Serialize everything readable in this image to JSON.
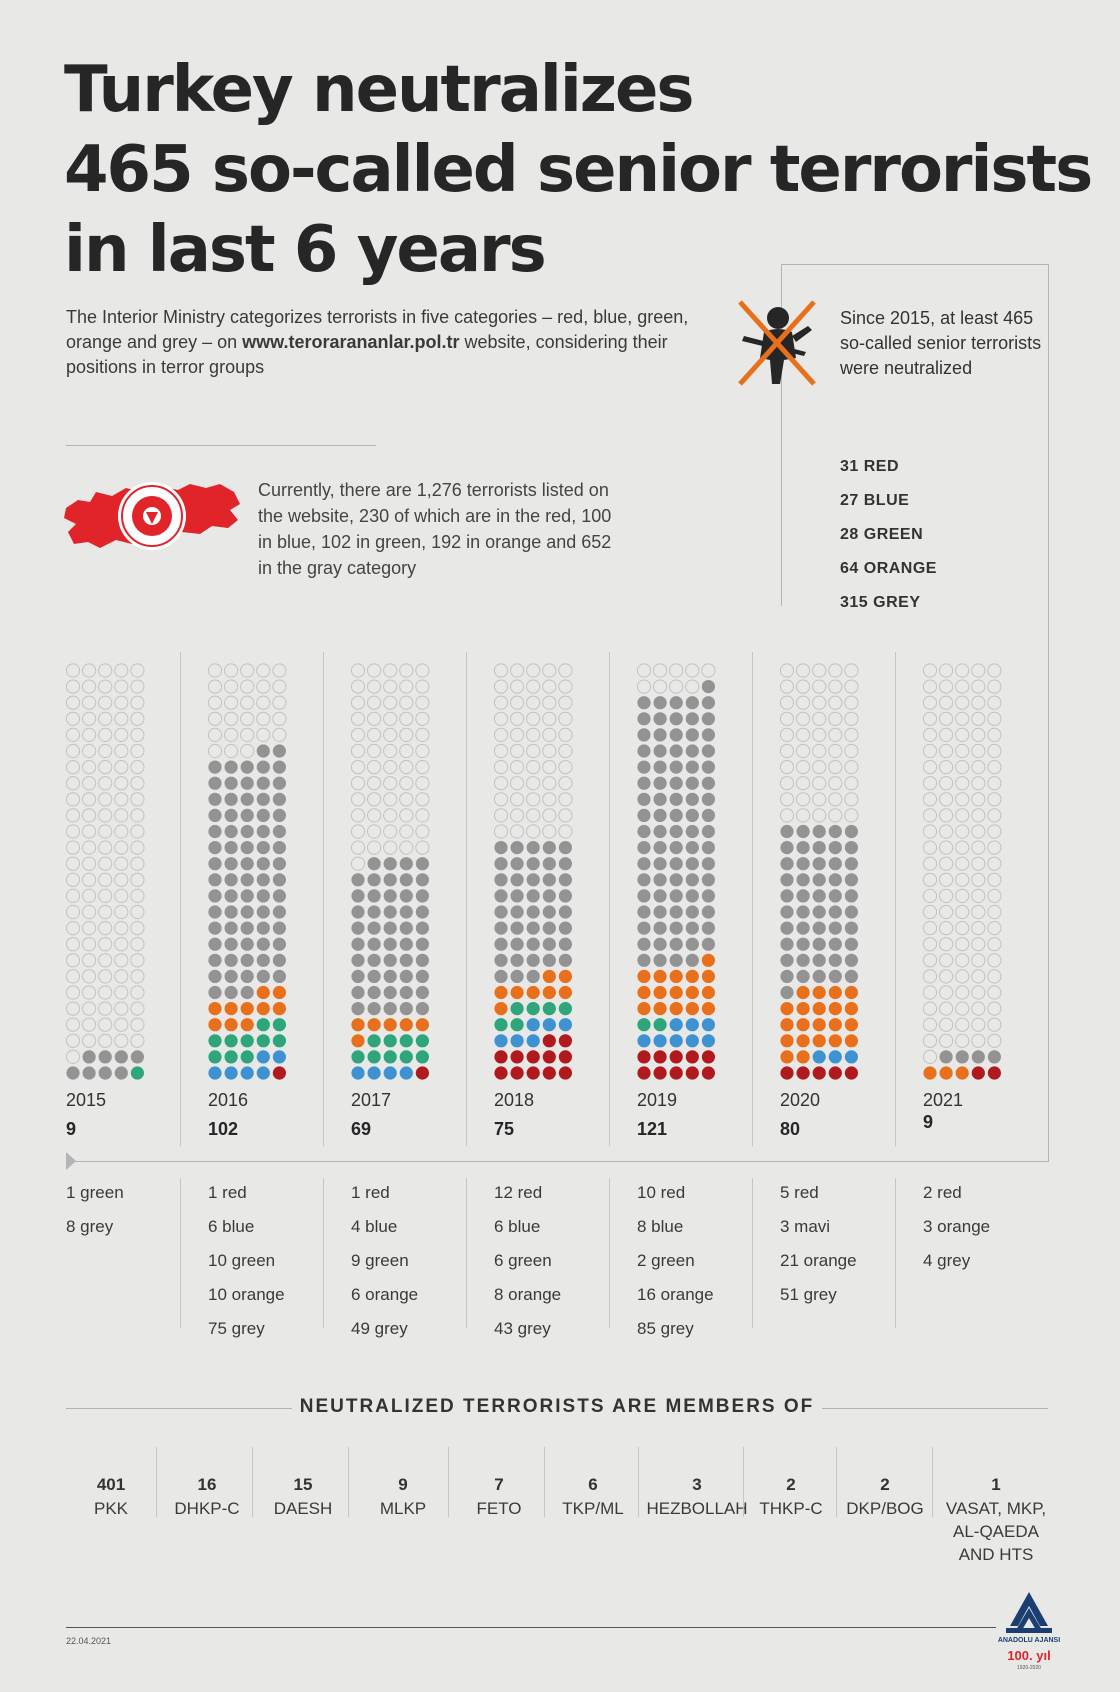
{
  "title_lines": [
    "Turkey neutralizes",
    "465 so-called senior terrorists",
    "in last 6 years"
  ],
  "intro": {
    "before": "The Interior Ministry categorizes terrorists in five categories – red, blue, green, orange and grey – on ",
    "site": "www.terorarananlar.pol.tr",
    "after": " website, considering their positions in terror groups"
  },
  "current_text": "Currently, there are 1,276 terrorists listed on the website, 230 of which are in the red, 100 in blue, 102 in green, 192 in orange and 652 in the gray category",
  "summary": {
    "text": "Since 2015, at least 465 so-called senior terrorists were neutralized",
    "items": [
      "31 RED",
      "27 BLUE",
      "28 GREEN",
      "64 ORANGE",
      "315 GREY"
    ]
  },
  "colors": {
    "red": "#b0191e",
    "blue": "#3f92d2",
    "green": "#2ea57a",
    "orange": "#e8701c",
    "grey": "#939393",
    "accent": "#e0242a"
  },
  "icons": [
    "crossed-out-militant-icon",
    "turkey-map-seal-icon",
    "anadolu-agency-logo"
  ],
  "chart_data": {
    "type": "bar",
    "stacked": true,
    "unit": "one dot = one neutralized terrorist",
    "categories": [
      "2015",
      "2016",
      "2017",
      "2018",
      "2019",
      "2020",
      "2021"
    ],
    "totals": [
      9,
      102,
      69,
      75,
      121,
      80,
      9
    ],
    "series": [
      {
        "name": "red",
        "values": [
          0,
          1,
          1,
          12,
          10,
          5,
          2
        ]
      },
      {
        "name": "blue",
        "values": [
          0,
          6,
          4,
          6,
          8,
          3,
          0
        ]
      },
      {
        "name": "green",
        "values": [
          1,
          10,
          9,
          6,
          2,
          0,
          0
        ]
      },
      {
        "name": "orange",
        "values": [
          0,
          10,
          6,
          8,
          16,
          21,
          3
        ]
      },
      {
        "name": "grey",
        "values": [
          8,
          75,
          49,
          43,
          85,
          51,
          4
        ]
      }
    ],
    "breakdown": [
      [
        "1 green",
        "8 grey"
      ],
      [
        "1 red",
        "6 blue",
        "10 green",
        "10 orange",
        "75 grey"
      ],
      [
        "1 red",
        "4 blue",
        "9 green",
        "6 orange",
        "49 grey"
      ],
      [
        "12 red",
        "6 blue",
        "6 green",
        "8 orange",
        "43 grey"
      ],
      [
        "10 red",
        "8 blue",
        "2 green",
        "16 orange",
        "85 grey"
      ],
      [
        "5 red",
        "3 mavi",
        "21 orange",
        "51 grey"
      ],
      [
        "2 red",
        "3 orange",
        "4 grey"
      ]
    ]
  },
  "members": {
    "heading": "NEUTRALIZED TERRORISTS ARE MEMBERS OF",
    "groups": [
      {
        "count": "401",
        "name": "PKK"
      },
      {
        "count": "16",
        "name": "DHKP-C"
      },
      {
        "count": "15",
        "name": "DAESH"
      },
      {
        "count": "9",
        "name": "MLKP"
      },
      {
        "count": "7",
        "name": "FETO"
      },
      {
        "count": "6",
        "name": "TKP/ML"
      },
      {
        "count": "3",
        "name": "HEZBOLLAH"
      },
      {
        "count": "2",
        "name": "THKP-C"
      },
      {
        "count": "2",
        "name": "DKP/BOG"
      },
      {
        "count": "1",
        "name": "VASAT, MKP, AL-QAEDA AND HTS"
      }
    ]
  },
  "footer": {
    "date": "22.04.2021",
    "logo_text": "ANADOLU AJANSI",
    "anniversary": "100. yıl",
    "anniversary_years": "1920-2020"
  }
}
